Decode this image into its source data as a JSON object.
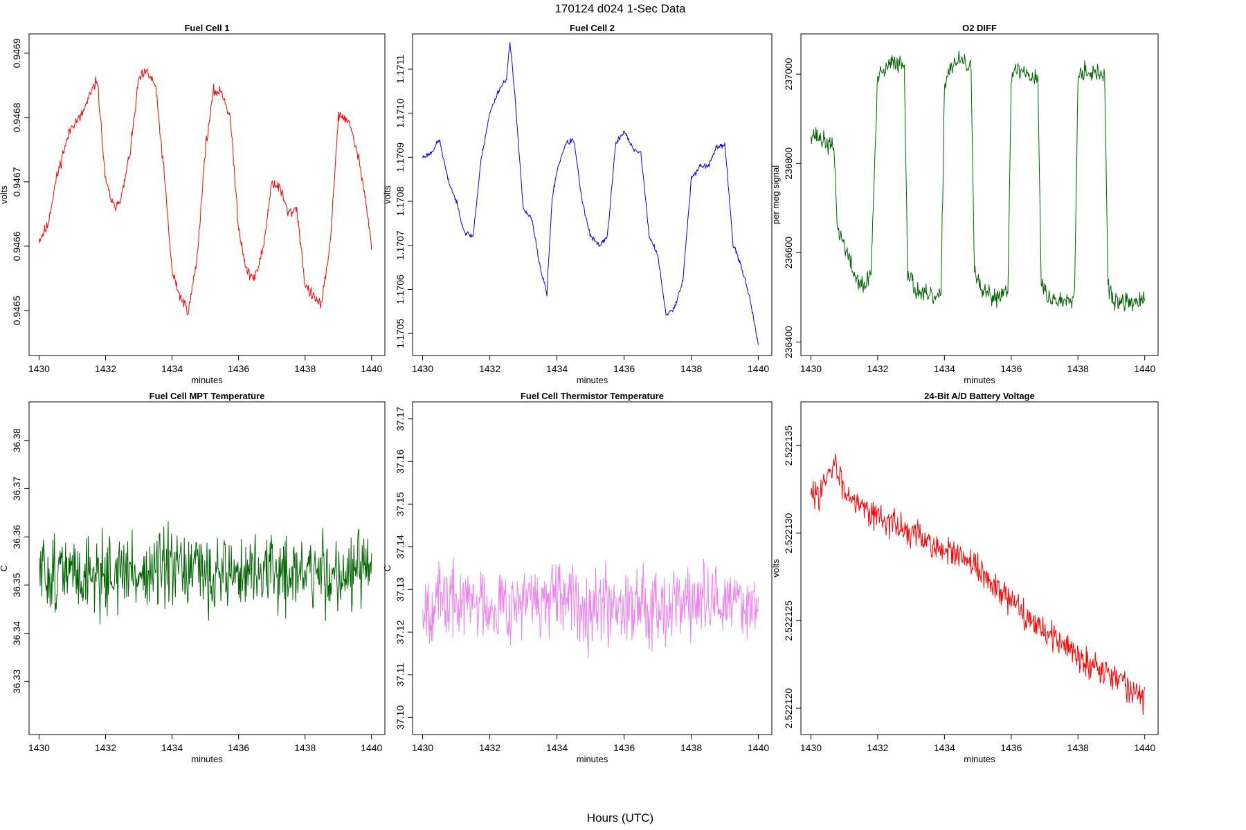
{
  "figure": {
    "title": "170124   d024   1-Sec Data",
    "xlabel": "Hours (UTC)"
  },
  "chart_data": [
    {
      "type": "line",
      "title": "Fuel Cell 1",
      "xlabel": "minutes",
      "ylabel": "volts",
      "color": "#ff0000",
      "xlim": [
        1429.7,
        1440.4
      ],
      "ylim": [
        0.94643,
        0.94693
      ],
      "xticks": [
        "1430",
        "1432",
        "1434",
        "1436",
        "1438",
        "1440"
      ],
      "yticks": [
        "0.9465",
        "0.9466",
        "0.9467",
        "0.9468",
        "0.9469"
      ],
      "x": [
        1430.0,
        1430.25,
        1430.5,
        1430.75,
        1431.0,
        1431.25,
        1431.5,
        1431.75,
        1432.0,
        1432.25,
        1432.5,
        1432.75,
        1433.0,
        1433.25,
        1433.5,
        1433.75,
        1434.0,
        1434.25,
        1434.5,
        1434.75,
        1435.0,
        1435.25,
        1435.5,
        1435.75,
        1436.0,
        1436.25,
        1436.5,
        1436.75,
        1437.0,
        1437.25,
        1437.5,
        1437.75,
        1438.0,
        1438.25,
        1438.5,
        1438.75,
        1439.0,
        1439.25,
        1439.5,
        1439.75,
        1440.0
      ],
      "y": [
        0.94661,
        0.94663,
        0.9467,
        0.94675,
        0.94679,
        0.9468,
        0.94683,
        0.94686,
        0.9467,
        0.94666,
        0.94668,
        0.94675,
        0.94686,
        0.94687,
        0.94685,
        0.94672,
        0.94656,
        0.94652,
        0.9465,
        0.94658,
        0.94675,
        0.94684,
        0.94684,
        0.9468,
        0.94663,
        0.94656,
        0.94655,
        0.9466,
        0.9467,
        0.94669,
        0.94665,
        0.94666,
        0.94654,
        0.94652,
        0.94651,
        0.9466,
        0.9468,
        0.9468,
        0.94676,
        0.9467,
        0.9466
      ],
      "noise": 1.2e-05,
      "seed": 11
    },
    {
      "type": "line",
      "title": "Fuel Cell 2",
      "xlabel": "minutes",
      "ylabel": "volts",
      "color": "#0000ff",
      "xlim": [
        1429.7,
        1440.4
      ],
      "ylim": [
        1.17045,
        1.17118
      ],
      "xticks": [
        "1430",
        "1432",
        "1434",
        "1436",
        "1438",
        "1440"
      ],
      "yticks": [
        "1.1705",
        "1.1706",
        "1.1707",
        "1.1708",
        "1.1709",
        "1.1710",
        "1.1711"
      ],
      "x": [
        1430.0,
        1430.25,
        1430.5,
        1430.75,
        1431.0,
        1431.25,
        1431.5,
        1431.75,
        1432.0,
        1432.25,
        1432.5,
        1432.6,
        1432.75,
        1433.0,
        1433.25,
        1433.5,
        1433.7,
        1433.85,
        1434.0,
        1434.25,
        1434.5,
        1434.75,
        1435.0,
        1435.25,
        1435.5,
        1435.75,
        1436.0,
        1436.25,
        1436.5,
        1436.75,
        1437.0,
        1437.25,
        1437.5,
        1437.75,
        1438.0,
        1438.25,
        1438.5,
        1438.75,
        1439.0,
        1439.25,
        1439.5,
        1439.75,
        1440.0
      ],
      "y": [
        1.1709,
        1.17091,
        1.17094,
        1.17085,
        1.1708,
        1.17073,
        1.17072,
        1.1709,
        1.171,
        1.17105,
        1.17108,
        1.17116,
        1.17104,
        1.17078,
        1.17076,
        1.17065,
        1.17059,
        1.1708,
        1.17087,
        1.17093,
        1.17094,
        1.1708,
        1.17072,
        1.1707,
        1.17072,
        1.17093,
        1.17096,
        1.17092,
        1.17091,
        1.17072,
        1.17068,
        1.17054,
        1.17056,
        1.17062,
        1.17085,
        1.17088,
        1.17088,
        1.17092,
        1.17093,
        1.1707,
        1.17065,
        1.17058,
        1.17047
      ],
      "noise": 8e-06,
      "seed": 23
    },
    {
      "type": "line",
      "title": "O2 DIFF",
      "xlabel": "minutes",
      "ylabel": "per meg signal",
      "color": "#006400",
      "xlim": [
        1429.7,
        1440.4
      ],
      "ylim": [
        236370,
        237090
      ],
      "xticks": [
        "1430",
        "1432",
        "1434",
        "1436",
        "1438",
        "1440"
      ],
      "yticks": [
        "236400",
        "236600",
        "236800",
        "237000"
      ],
      "x": [
        1430.0,
        1430.4,
        1430.7,
        1430.8,
        1431.0,
        1431.3,
        1431.6,
        1431.8,
        1432.0,
        1432.5,
        1432.8,
        1432.9,
        1433.1,
        1433.5,
        1433.9,
        1434.0,
        1434.2,
        1434.5,
        1434.8,
        1434.9,
        1435.1,
        1435.5,
        1435.9,
        1436.0,
        1436.2,
        1436.5,
        1436.8,
        1436.9,
        1437.1,
        1437.5,
        1437.9,
        1438.0,
        1438.2,
        1438.5,
        1438.8,
        1438.9,
        1439.1,
        1439.5,
        1440.0
      ],
      "y": [
        236870,
        236850,
        236830,
        236650,
        236620,
        236550,
        236520,
        236560,
        236990,
        237030,
        237020,
        236560,
        236520,
        236500,
        236500,
        236980,
        237020,
        237030,
        237010,
        236560,
        236510,
        236500,
        236520,
        236990,
        237010,
        237000,
        236990,
        236530,
        236500,
        236490,
        236510,
        237000,
        237010,
        237000,
        237000,
        236520,
        236490,
        236490,
        236490
      ],
      "noise": 28,
      "seed": 37
    },
    {
      "type": "line",
      "title": "Fuel Cell MPT Temperature",
      "xlabel": "minutes",
      "ylabel": "C",
      "color": "#006400",
      "xlim": [
        1429.7,
        1440.4
      ],
      "ylim": [
        36.319,
        36.388
      ],
      "xticks": [
        "1430",
        "1432",
        "1434",
        "1436",
        "1438",
        "1440"
      ],
      "yticks": [
        "36.33",
        "36.34",
        "36.35",
        "36.36",
        "36.37",
        "36.38"
      ],
      "x": [
        1430.0,
        1440.0
      ],
      "y": [
        36.3525,
        36.3525
      ],
      "noise": 0.0105,
      "seed": 51
    },
    {
      "type": "line",
      "title": "Fuel Cell Thermistor Temperature",
      "xlabel": "minutes",
      "ylabel": "C",
      "color": "#ee82ee",
      "xlim": [
        1429.7,
        1440.4
      ],
      "ylim": [
        37.096,
        37.174
      ],
      "xticks": [
        "1430",
        "1432",
        "1434",
        "1436",
        "1438",
        "1440"
      ],
      "yticks": [
        "37.10",
        "37.11",
        "37.12",
        "37.13",
        "37.14",
        "37.15",
        "37.16",
        "37.17"
      ],
      "x": [
        1430.0,
        1440.0
      ],
      "y": [
        37.127,
        37.127
      ],
      "noise": 0.0115,
      "seed": 67
    },
    {
      "type": "line",
      "title": "24-Bit A/D Battery Voltage",
      "xlabel": "minutes",
      "ylabel": "volts",
      "color": "#ff0000",
      "xlim": [
        1429.7,
        1440.4
      ],
      "ylim": [
        2.5221185,
        2.5221375
      ],
      "xticks": [
        "1430",
        "1432",
        "1434",
        "1436",
        "1438",
        "1440"
      ],
      "yticks": [
        "2.522120",
        "2.522125",
        "2.522130",
        "2.522135"
      ],
      "x": [
        1430.0,
        1430.5,
        1430.7,
        1431.0,
        1432.0,
        1433.0,
        1434.0,
        1435.0,
        1436.0,
        1437.0,
        1438.0,
        1439.0,
        1440.0
      ],
      "y": [
        2.522132,
        2.522133,
        2.522134,
        2.5221325,
        2.522131,
        2.52213,
        2.522129,
        2.522128,
        2.522126,
        2.5221245,
        2.522123,
        2.522122,
        2.5221205
      ],
      "noise": 1.1e-06,
      "seed": 83
    }
  ]
}
